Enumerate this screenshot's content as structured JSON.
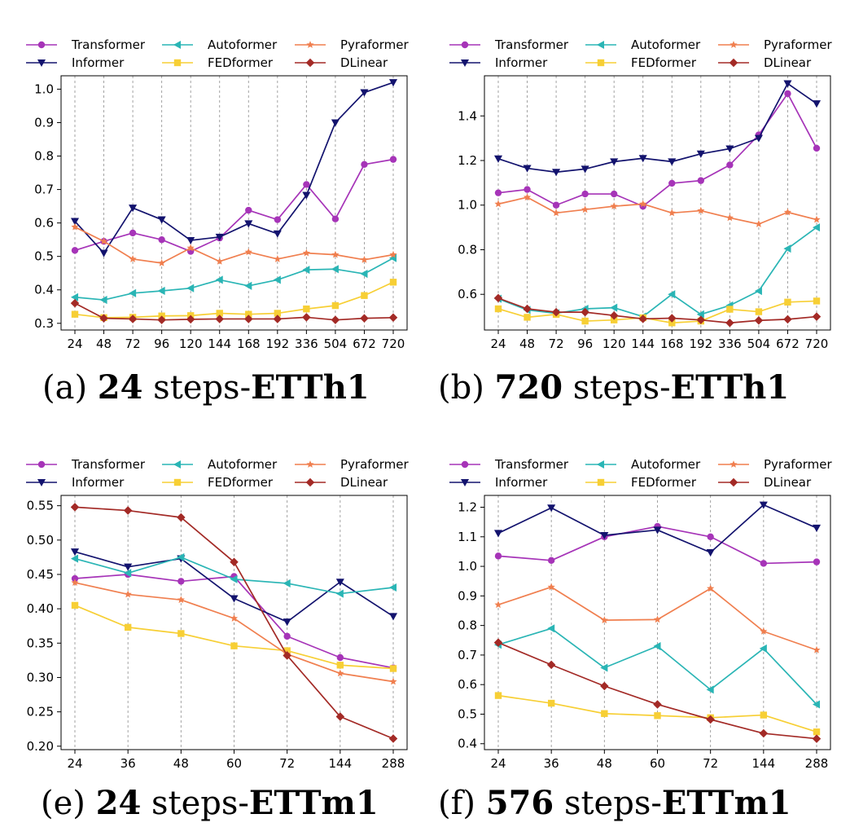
{
  "colors": {
    "Transformer": "#a634b8",
    "Informer": "#13136e",
    "Autoformer": "#2ab5b5",
    "FEDformer": "#f7cf35",
    "Pyraformer": "#f07f4f",
    "DLinear": "#a32a26"
  },
  "markers": {
    "Transformer": "circle",
    "Informer": "triangle-down",
    "Autoformer": "triangle-left",
    "FEDformer": "square",
    "Pyraformer": "star",
    "DLinear": "diamond"
  },
  "legend_order": [
    "Transformer",
    "Informer",
    "Autoformer",
    "FEDformer",
    "Pyraformer",
    "DLinear"
  ],
  "chart_data": [
    {
      "type": "line",
      "caption": {
        "prefix": "(a) ",
        "bold1": "24",
        "mid": " steps-",
        "bold2": "ETTh1"
      },
      "categories": [
        "24",
        "48",
        "72",
        "96",
        "120",
        "144",
        "168",
        "192",
        "336",
        "504",
        "672",
        "720"
      ],
      "yticks": [
        "0.3",
        "0.4",
        "0.5",
        "0.6",
        "0.7",
        "0.8",
        "0.9",
        "1.0"
      ],
      "ylim": [
        0.28,
        1.04
      ],
      "series": [
        {
          "name": "Transformer",
          "values": [
            0.518,
            0.545,
            0.57,
            0.55,
            0.515,
            0.555,
            0.638,
            0.61,
            0.715,
            0.612,
            0.775,
            0.79
          ]
        },
        {
          "name": "Informer",
          "values": [
            0.605,
            0.51,
            0.645,
            0.61,
            0.548,
            0.558,
            0.598,
            0.568,
            0.683,
            0.9,
            0.99,
            1.02
          ]
        },
        {
          "name": "Autoformer",
          "values": [
            0.378,
            0.37,
            0.39,
            0.397,
            0.405,
            0.43,
            0.412,
            0.43,
            0.46,
            0.462,
            0.448,
            0.495
          ]
        },
        {
          "name": "FEDformer",
          "values": [
            0.327,
            0.317,
            0.318,
            0.322,
            0.323,
            0.33,
            0.327,
            0.33,
            0.343,
            0.353,
            0.383,
            0.423
          ]
        },
        {
          "name": "Pyraformer",
          "values": [
            0.588,
            0.545,
            0.492,
            0.48,
            0.525,
            0.485,
            0.513,
            0.492,
            0.51,
            0.505,
            0.49,
            0.505
          ]
        },
        {
          "name": "DLinear",
          "values": [
            0.36,
            0.315,
            0.313,
            0.31,
            0.312,
            0.313,
            0.313,
            0.313,
            0.318,
            0.31,
            0.315,
            0.317
          ]
        }
      ]
    },
    {
      "type": "line",
      "caption": {
        "prefix": "(b) ",
        "bold1": "720",
        "mid": " steps-",
        "bold2": "ETTh1"
      },
      "categories": [
        "24",
        "48",
        "72",
        "96",
        "120",
        "144",
        "168",
        "192",
        "336",
        "504",
        "672",
        "720"
      ],
      "yticks": [
        "0.6",
        "0.8",
        "1.0",
        "1.2",
        "1.4"
      ],
      "ylim": [
        0.44,
        1.58
      ],
      "series": [
        {
          "name": "Transformer",
          "values": [
            1.055,
            1.07,
            1.0,
            1.05,
            1.05,
            0.995,
            1.098,
            1.11,
            1.18,
            1.315,
            1.5,
            1.255
          ]
        },
        {
          "name": "Informer",
          "values": [
            1.208,
            1.165,
            1.148,
            1.162,
            1.195,
            1.21,
            1.195,
            1.23,
            1.253,
            1.3,
            1.545,
            1.455
          ]
        },
        {
          "name": "Autoformer",
          "values": [
            0.58,
            0.53,
            0.515,
            0.535,
            0.54,
            0.5,
            0.6,
            0.51,
            0.55,
            0.615,
            0.805,
            0.9
          ]
        },
        {
          "name": "FEDformer",
          "values": [
            0.535,
            0.497,
            0.51,
            0.48,
            0.485,
            0.495,
            0.472,
            0.48,
            0.533,
            0.522,
            0.565,
            0.57
          ]
        },
        {
          "name": "Pyraformer",
          "values": [
            1.005,
            1.035,
            0.965,
            0.98,
            0.995,
            1.005,
            0.965,
            0.975,
            0.943,
            0.915,
            0.968,
            0.935
          ]
        },
        {
          "name": "DLinear",
          "values": [
            0.583,
            0.535,
            0.52,
            0.52,
            0.505,
            0.49,
            0.493,
            0.485,
            0.472,
            0.483,
            0.488,
            0.5
          ]
        }
      ]
    },
    {
      "type": "line",
      "caption": {
        "prefix": "(e) ",
        "bold1": "24",
        "mid": " steps-",
        "bold2": "ETTm1"
      },
      "categories": [
        "24",
        "36",
        "48",
        "60",
        "72",
        "144",
        "288"
      ],
      "yticks": [
        "0.20",
        "0.25",
        "0.30",
        "0.35",
        "0.40",
        "0.45",
        "0.50",
        "0.55"
      ],
      "ylim": [
        0.195,
        0.565
      ],
      "series": [
        {
          "name": "Transformer",
          "values": [
            0.444,
            0.45,
            0.44,
            0.447,
            0.36,
            0.329,
            0.314
          ]
        },
        {
          "name": "Informer",
          "values": [
            0.483,
            0.461,
            0.473,
            0.415,
            0.381,
            0.439,
            0.389
          ]
        },
        {
          "name": "Autoformer",
          "values": [
            0.473,
            0.452,
            0.475,
            0.443,
            0.437,
            0.422,
            0.431
          ]
        },
        {
          "name": "FEDformer",
          "values": [
            0.405,
            0.373,
            0.364,
            0.346,
            0.339,
            0.318,
            0.313
          ]
        },
        {
          "name": "Pyraformer",
          "values": [
            0.438,
            0.421,
            0.413,
            0.386,
            0.334,
            0.306,
            0.294
          ]
        },
        {
          "name": "DLinear",
          "values": [
            0.548,
            0.543,
            0.533,
            0.468,
            0.332,
            0.243,
            0.211
          ]
        }
      ]
    },
    {
      "type": "line",
      "caption": {
        "prefix": "(f) ",
        "bold1": "576",
        "mid": " steps-",
        "bold2": "ETTm1"
      },
      "categories": [
        "24",
        "36",
        "48",
        "60",
        "72",
        "144",
        "288"
      ],
      "yticks": [
        "0.4",
        "0.5",
        "0.6",
        "0.7",
        "0.8",
        "0.9",
        "1.0",
        "1.1",
        "1.2"
      ],
      "ylim": [
        0.38,
        1.24
      ],
      "series": [
        {
          "name": "Transformer",
          "values": [
            1.035,
            1.02,
            1.1,
            1.135,
            1.1,
            1.01,
            1.015
          ]
        },
        {
          "name": "Informer",
          "values": [
            1.112,
            1.198,
            1.105,
            1.123,
            1.047,
            1.208,
            1.13
          ]
        },
        {
          "name": "Autoformer",
          "values": [
            0.735,
            0.79,
            0.657,
            0.73,
            0.583,
            0.722,
            0.533
          ]
        },
        {
          "name": "FEDformer",
          "values": [
            0.563,
            0.537,
            0.502,
            0.495,
            0.488,
            0.497,
            0.44
          ]
        },
        {
          "name": "Pyraformer",
          "values": [
            0.87,
            0.93,
            0.818,
            0.82,
            0.925,
            0.78,
            0.717
          ]
        },
        {
          "name": "DLinear",
          "values": [
            0.742,
            0.667,
            0.595,
            0.533,
            0.482,
            0.435,
            0.417
          ]
        }
      ]
    }
  ]
}
